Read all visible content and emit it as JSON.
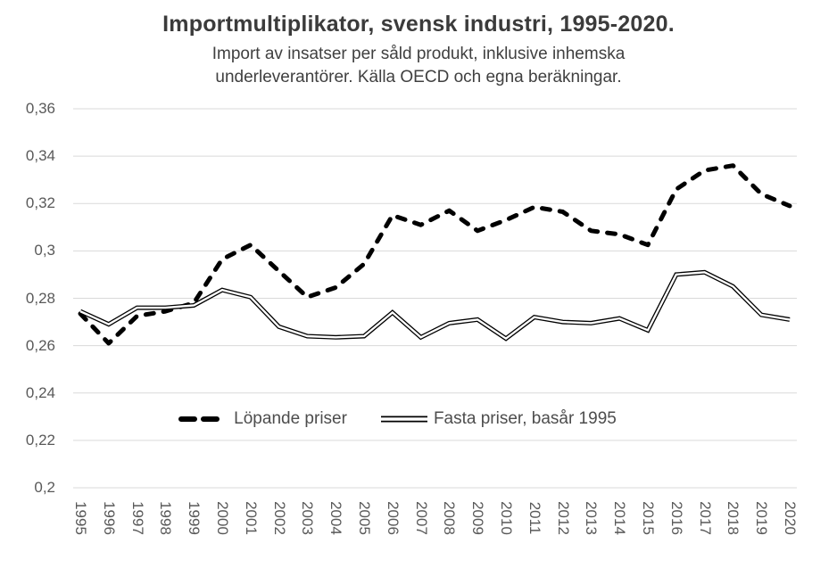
{
  "page": {
    "background": "#ffffff"
  },
  "chart_data": {
    "type": "line",
    "title": "Importmultiplikator, svensk industri, 1995-2020.",
    "subtitle_lines": [
      "Import av insatser per såld produkt, inklusive inhemska",
      "underleverantörer. Källa OECD och egna beräkningar."
    ],
    "categories": [
      1995,
      1996,
      1997,
      1998,
      1999,
      2000,
      2001,
      2002,
      2003,
      2004,
      2005,
      2006,
      2007,
      2008,
      2009,
      2010,
      2011,
      2012,
      2013,
      2014,
      2015,
      2016,
      2017,
      2018,
      2019,
      2020
    ],
    "series": [
      {
        "name": "Löpande priser",
        "line_style": "thick-dashed",
        "values": [
          0.2735,
          0.261,
          0.2725,
          0.2745,
          0.278,
          0.2965,
          0.3025,
          0.2915,
          0.2805,
          0.2845,
          0.2945,
          0.315,
          0.311,
          0.317,
          0.3085,
          0.313,
          0.3185,
          0.3165,
          0.3085,
          0.307,
          0.3025,
          0.326,
          0.334,
          0.336,
          0.324,
          0.319
        ]
      },
      {
        "name": "Fasta priser, basår 1995",
        "line_style": "double-outline",
        "values": [
          0.2745,
          0.269,
          0.276,
          0.276,
          0.277,
          0.2835,
          0.2805,
          0.268,
          0.264,
          0.2635,
          0.264,
          0.274,
          0.2635,
          0.2695,
          0.271,
          0.263,
          0.272,
          0.27,
          0.2695,
          0.2715,
          0.2665,
          0.29,
          0.291,
          0.285,
          0.273,
          0.271
        ]
      }
    ],
    "y_axis": {
      "min": 0.2,
      "max": 0.36,
      "step": 0.02,
      "tick_labels": [
        "0,2",
        "0,22",
        "0,24",
        "0,26",
        "0,28",
        "0,3",
        "0,32",
        "0,34",
        "0,36"
      ]
    },
    "x_axis": {
      "label_rotation_deg": 90
    },
    "grid": true,
    "legend_position": "bottom-center-inside",
    "colors": {
      "series_line": "#000000",
      "gridline": "#d9d9d9",
      "tick_text": "#595959",
      "title_text": "#3b3b3b",
      "background": "#ffffff"
    }
  }
}
